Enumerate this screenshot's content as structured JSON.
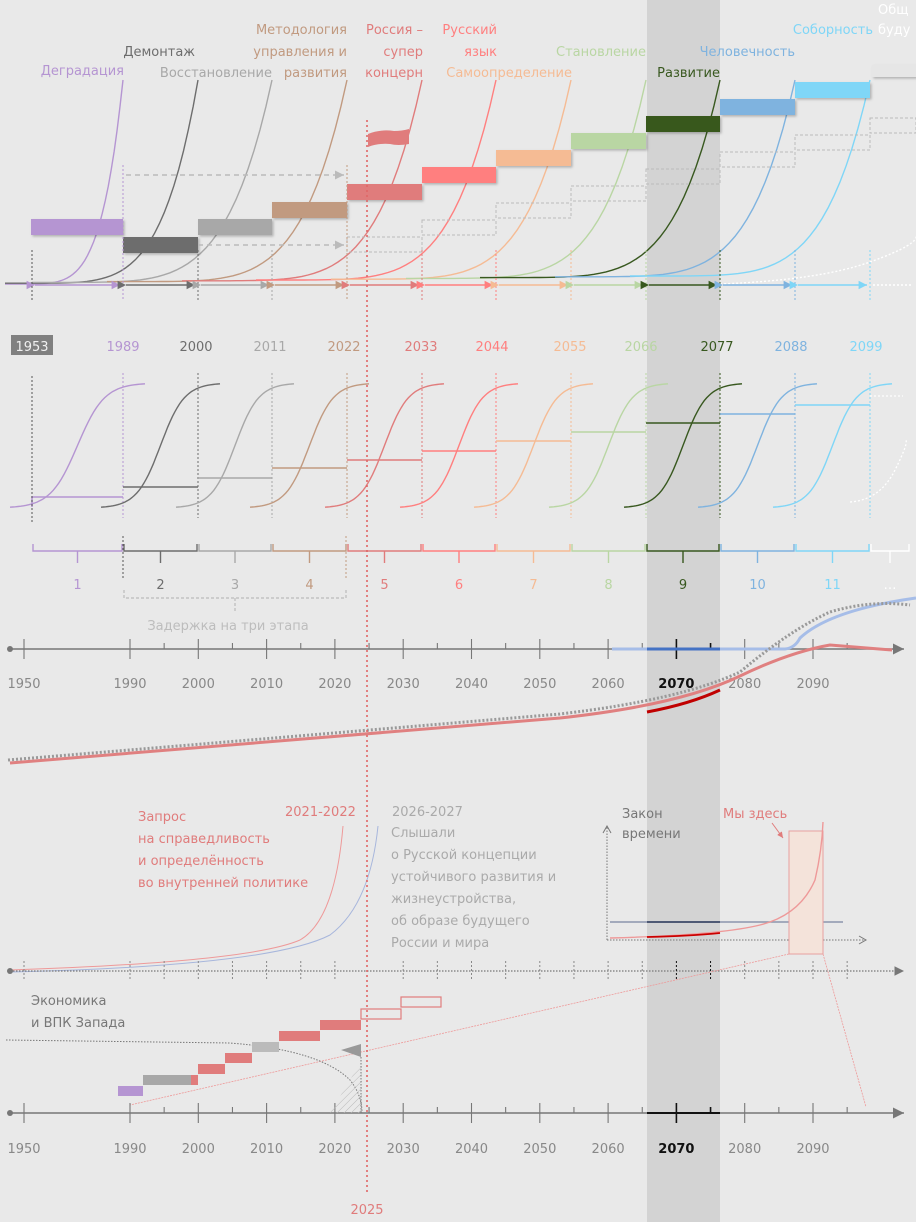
{
  "colors": {
    "background": "#e9e9e9",
    "highlight_band": "#d3d3d3",
    "now_line": "#e06666",
    "axis": "#777777"
  },
  "stages": [
    {
      "n": "1",
      "year": "1953",
      "label": [
        "Деградация"
      ],
      "color": "#b595d2",
      "year_badge": true
    },
    {
      "n": "2",
      "year": "1989",
      "label": [
        "Демонтаж"
      ],
      "color": "#6d6d6d"
    },
    {
      "n": "3",
      "year": "2000",
      "label": [
        "Восстановление"
      ],
      "color": "#a8a8a8"
    },
    {
      "n": "4",
      "year": "2011",
      "label": [
        "Методология",
        "управления и",
        "развития"
      ],
      "color": "#c19a80"
    },
    {
      "n": "5",
      "year": "2022",
      "label": [
        "Россия –",
        "супер",
        "концерн"
      ],
      "color": "#e07c7c"
    },
    {
      "n": "6",
      "year": "2033",
      "label": [
        "Русский",
        "язык"
      ],
      "color": "#ff7f7f"
    },
    {
      "n": "7",
      "year": "2044",
      "label": [
        "Самоопределение"
      ],
      "color": "#f5bb94"
    },
    {
      "n": "8",
      "year": "2055",
      "label": [
        "Становление"
      ],
      "color": "#b9d6a3"
    },
    {
      "n": "9",
      "year": "2066",
      "label": [
        "Развитие"
      ],
      "color": "#38581f"
    },
    {
      "n": "10",
      "year": "2077",
      "label": [
        "Человечность"
      ],
      "color": "#7fb3df"
    },
    {
      "n": "11",
      "year": "2088",
      "label": [
        "Соборность"
      ],
      "color": "#7fd6f7"
    },
    {
      "n": "…",
      "year": "2099",
      "label": [
        "Общ",
        "буду"
      ],
      "color": "#ffffff"
    }
  ],
  "year_labels": [
    "1953",
    "1989",
    "2000",
    "2011",
    "2022",
    "2033",
    "2044",
    "2055",
    "2066",
    "2077",
    "2088",
    "2099"
  ],
  "delay_label": "Задержка на три этапа",
  "axis_years": [
    "1950",
    "1990",
    "2000",
    "2010",
    "2020",
    "2030",
    "2040",
    "2050",
    "2060",
    "2070",
    "2080",
    "2090"
  ],
  "axis_highlight_year": "2070",
  "now_year": "2025",
  "request_block": {
    "years": "2021-2022",
    "lines": [
      "Запрос",
      "на справедливость",
      "и определённость",
      "во внутренней политике"
    ]
  },
  "heard_block": {
    "years": "2026-2027",
    "lines": [
      "Слышали",
      "о Русской концепции",
      "устойчивого развития и",
      "жизнеустройства,",
      "об образе будущего",
      "России и мира"
    ]
  },
  "law_of_time": {
    "title": [
      "Закон",
      "времени"
    ],
    "we_are_here": "Мы здесь"
  },
  "west_block": {
    "lines": [
      "Экономика",
      "и ВПК Запада"
    ]
  }
}
